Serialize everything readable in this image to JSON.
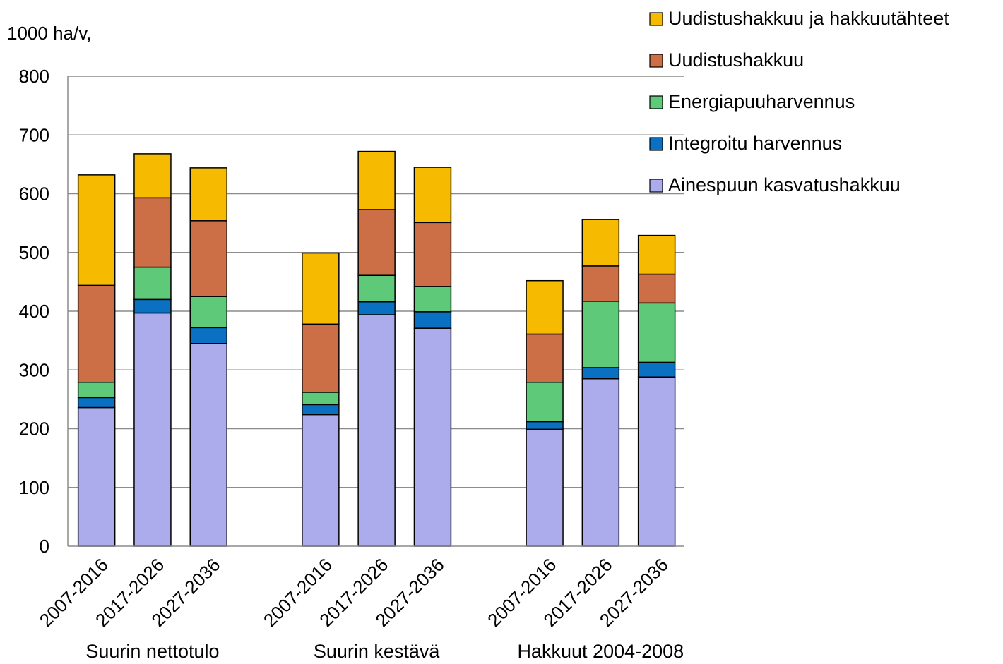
{
  "chart_data": {
    "type": "bar",
    "stacked": true,
    "ylabel": "1000 ha/v,",
    "ylim": [
      0,
      800
    ],
    "yticks": [
      0,
      100,
      200,
      300,
      400,
      500,
      600,
      700,
      800
    ],
    "grid": true,
    "legend_position": "top-right",
    "categories": [
      "2007-2016",
      "2017-2026",
      "2027-2036",
      "2007-2016",
      "2017-2026",
      "2027-2036",
      "2007-2016",
      "2017-2026",
      "2027-2036"
    ],
    "groups": [
      {
        "label": "Suurin nettotulo",
        "categories": [
          "2007-2016",
          "2017-2026",
          "2027-2036"
        ]
      },
      {
        "label": "Suurin kestävä",
        "categories": [
          "2007-2016",
          "2017-2026",
          "2027-2036"
        ]
      },
      {
        "label": "Hakkuut 2004-2008",
        "categories": [
          "2007-2016",
          "2017-2026",
          "2027-2036"
        ]
      }
    ],
    "series": [
      {
        "name": "Ainespuun kasvatushakkuu",
        "color": "#acacec",
        "values": [
          236,
          397,
          345,
          224,
          394,
          371,
          199,
          285,
          288
        ]
      },
      {
        "name": "Integroitu harvennus",
        "color": "#0a70c2",
        "values": [
          17,
          23,
          27,
          17,
          22,
          28,
          13,
          19,
          25
        ]
      },
      {
        "name": "Energiapuuharvennus",
        "color": "#5fc97a",
        "values": [
          26,
          55,
          53,
          21,
          45,
          43,
          67,
          113,
          101
        ]
      },
      {
        "name": "Uudistushakkuu",
        "color": "#cc6e46",
        "values": [
          165,
          118,
          129,
          116,
          112,
          109,
          82,
          60,
          49
        ]
      },
      {
        "name": "Uudistushakkuu ja hakkuutähteet",
        "color": "#f6bb00",
        "values": [
          188,
          75,
          90,
          121,
          99,
          94,
          91,
          79,
          66
        ]
      }
    ]
  }
}
